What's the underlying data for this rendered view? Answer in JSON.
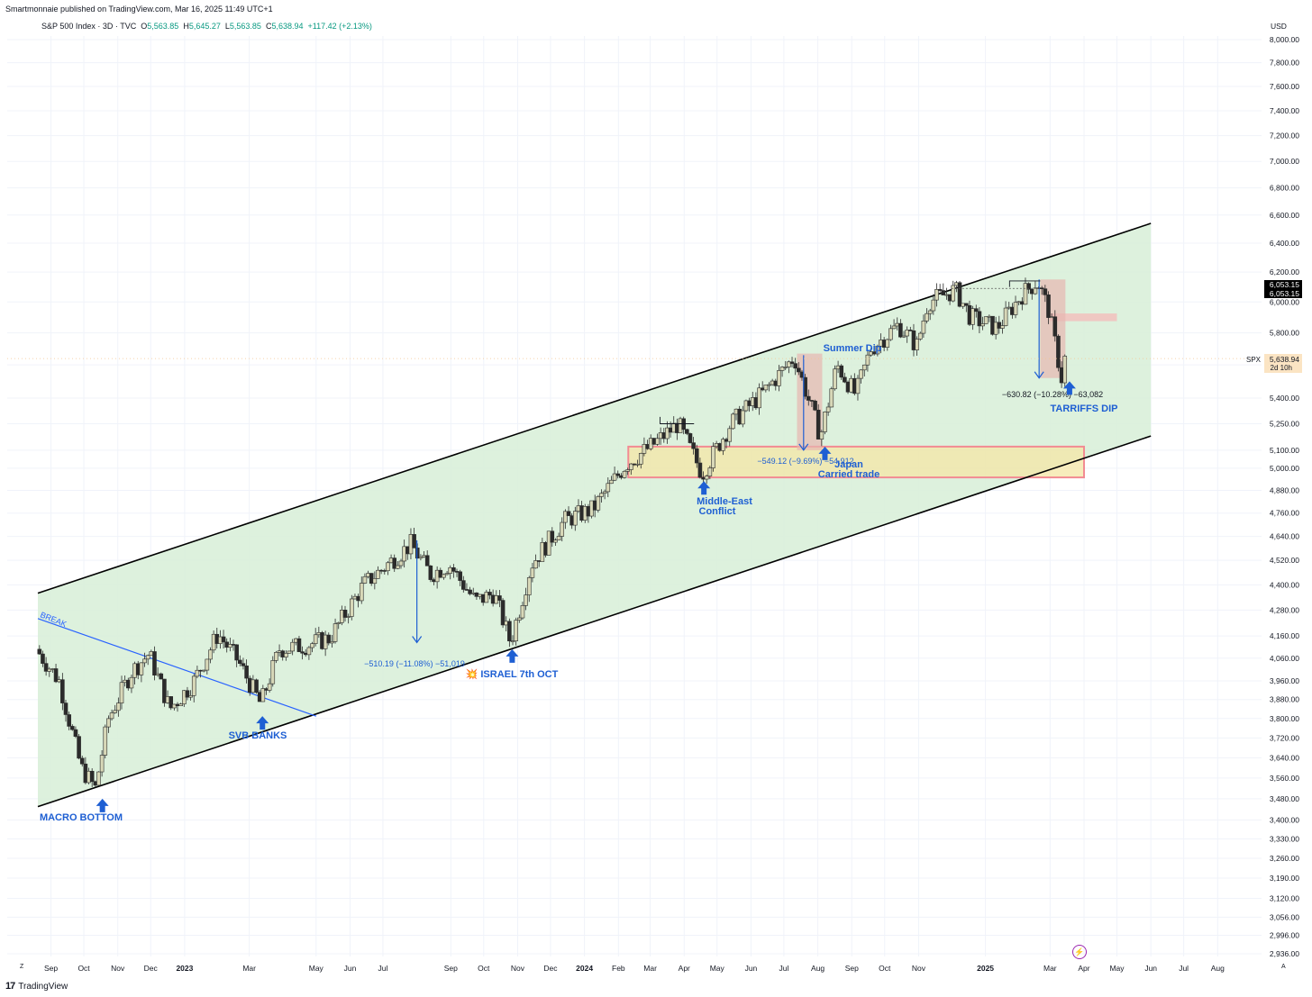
{
  "header": {
    "published": "Smartmonnaie published on TradingView.com, Mar 16, 2025 11:49 UTC+1",
    "symbol": "S&P 500 Index · 3D · TVC",
    "open_label": "O",
    "open": "5,563.85",
    "high_label": "H",
    "high": "5,645.27",
    "low_label": "L",
    "low": "5,563.85",
    "close_label": "C",
    "close": "5,638.94",
    "change": "+117.42 (+2.13%)"
  },
  "currency": "USD",
  "footer": {
    "brand": "TradingView",
    "logo": "17"
  },
  "edge_labels": {
    "left": "Z",
    "right": "A"
  },
  "colors": {
    "channel_fill": "#d9efd9",
    "channel_line": "#000000",
    "up_candle": "#d8d8b8",
    "down_candle": "#2b2b2b",
    "annotation_blue": "#1e5fd3",
    "break_line": "#2962ff",
    "zone_yellow": "#f4e5a6",
    "zone_border": "#f28b93",
    "range_fill": "#e7b7b1",
    "price_tag_bg": "#000000",
    "spx_tag_bg": "#fbe4c3"
  },
  "chart_data": {
    "type": "candlestick",
    "price_axis": {
      "scale": "log",
      "ticks": [
        2936,
        2996,
        3056,
        3120,
        3190,
        3260,
        3330,
        3400,
        3480,
        3560,
        3640,
        3720,
        3800,
        3880,
        3960,
        4060,
        4160,
        4280,
        4400,
        4520,
        4640,
        4760,
        4880,
        5000,
        5100,
        5250,
        5400,
        5600,
        5800,
        6000,
        6200,
        6400,
        6600,
        6800,
        7000,
        7200,
        7400,
        7600,
        7800,
        8000
      ],
      "tick_labels": [
        "2,936.00",
        "2,996.00",
        "3,056.00",
        "3,120.00",
        "3,190.00",
        "3,260.00",
        "3,330.00",
        "3,400.00",
        "3,480.00",
        "3,560.00",
        "3,640.00",
        "3,720.00",
        "3,800.00",
        "3,880.00",
        "3,960.00",
        "4,060.00",
        "4,160.00",
        "4,280.00",
        "4,400.00",
        "4,520.00",
        "4,640.00",
        "4,760.00",
        "4,880.00",
        "5,000.00",
        "5,100.00",
        "5,250.00",
        "5,400.00",
        "5,600.00",
        "5,800.00",
        "6,000.00",
        "6,200.00",
        "6,400.00",
        "6,600.00",
        "6,800.00",
        "7,000.00",
        "7,200.00",
        "7,400.00",
        "7,600.00",
        "7,800.00",
        "8,000.00"
      ]
    },
    "time_axis": {
      "labels": [
        "Sep",
        "Oct",
        "Nov",
        "Dec",
        "2023",
        "Mar",
        "May",
        "Jun",
        "Jul",
        "Sep",
        "Oct",
        "Nov",
        "Dec",
        "2024",
        "Feb",
        "Mar",
        "Apr",
        "May",
        "Jun",
        "Jul",
        "Aug",
        "Sep",
        "Oct",
        "Nov",
        "2025",
        "Mar",
        "Apr",
        "May",
        "Jun",
        "Jul",
        "Aug"
      ],
      "bold": [
        "2023",
        "2024",
        "2025"
      ]
    },
    "price_tags": [
      {
        "label": "6,053.15",
        "value": 6053.15,
        "style": "dark"
      },
      {
        "label": "6,053.15",
        "value": 6020,
        "style": "dark"
      }
    ],
    "last_price_tag": {
      "symbol": "SPX",
      "price": "5,638.94",
      "countdown": "2d 10h",
      "value": 5638.94
    },
    "path": [
      [
        "2022-08-20",
        4100
      ],
      [
        "2022-09-10",
        3960
      ],
      [
        "2022-09-30",
        3600
      ],
      [
        "2022-10-13",
        3520
      ],
      [
        "2022-10-25",
        3800
      ],
      [
        "2022-11-15",
        4000
      ],
      [
        "2022-12-01",
        4080
      ],
      [
        "2022-12-20",
        3840
      ],
      [
        "2023-01-10",
        3950
      ],
      [
        "2023-02-02",
        4170
      ],
      [
        "2023-02-20",
        4050
      ],
      [
        "2023-03-13",
        3860
      ],
      [
        "2023-03-30",
        4100
      ],
      [
        "2023-04-25",
        4120
      ],
      [
        "2023-05-15",
        4150
      ],
      [
        "2023-06-15",
        4400
      ],
      [
        "2023-07-28",
        4600
      ],
      [
        "2023-08-15",
        4450
      ],
      [
        "2023-09-01",
        4500
      ],
      [
        "2023-09-25",
        4320
      ],
      [
        "2023-10-12",
        4360
      ],
      [
        "2023-10-27",
        4130
      ],
      [
        "2023-11-15",
        4500
      ],
      [
        "2023-12-15",
        4720
      ],
      [
        "2024-01-10",
        4780
      ],
      [
        "2024-02-09",
        5020
      ],
      [
        "2024-03-05",
        5130
      ],
      [
        "2024-03-28",
        5250
      ],
      [
        "2024-04-19",
        4970
      ],
      [
        "2024-05-15",
        5250
      ],
      [
        "2024-06-15",
        5440
      ],
      [
        "2024-07-12",
        5650
      ],
      [
        "2024-08-05",
        5180
      ],
      [
        "2024-08-20",
        5600
      ],
      [
        "2024-09-06",
        5420
      ],
      [
        "2024-09-20",
        5700
      ],
      [
        "2024-10-15",
        5850
      ],
      [
        "2024-11-01",
        5720
      ],
      [
        "2024-11-11",
        6000
      ],
      [
        "2024-12-06",
        6080
      ],
      [
        "2024-12-20",
        5900
      ],
      [
        "2025-01-13",
        5830
      ],
      [
        "2025-02-05",
        6050
      ],
      [
        "2025-02-19",
        6140
      ],
      [
        "2025-03-01",
        5950
      ],
      [
        "2025-03-08",
        5700
      ],
      [
        "2025-03-13",
        5520
      ],
      [
        "2025-03-15",
        5638
      ]
    ],
    "channel": {
      "upper": [
        [
          "2022-08-20",
          4360
        ],
        [
          "2025-06-01",
          6540
        ]
      ],
      "lower": [
        [
          "2022-08-20",
          3450
        ],
        [
          "2025-06-01",
          5180
        ]
      ]
    },
    "break_line": {
      "label": "BREAK",
      "from": [
        "2022-08-20",
        4240
      ],
      "to": [
        "2023-05-01",
        3810
      ]
    },
    "support_zone": {
      "from": "2024-02-10",
      "to": "2025-04-01",
      "low": 4950,
      "high": 5120
    },
    "resistance_box": {
      "from": "2025-03-01",
      "to": "2025-05-01",
      "low": 5875,
      "high": 5925
    },
    "measures": [
      {
        "label": "−510.19 (−11.08%) −51,019",
        "date": "2023-08-01",
        "top": 4620,
        "bottom": 4130
      },
      {
        "label": "−549.12 (−9.69%) −54,912",
        "date": "2024-07-19",
        "top": 5660,
        "bottom": 5100
      },
      {
        "label": "−630.82 (−10.28%) −63,082",
        "date": "2025-02-19",
        "top": 6150,
        "bottom": 5520
      }
    ],
    "annotations": [
      {
        "text": "MACRO BOTTOM",
        "date": "2022-10-13",
        "value": 3480
      },
      {
        "text": "SVB BANKS",
        "date": "2023-03-13",
        "value": 3810
      },
      {
        "text": "💥 ISRAEL 7th OCT",
        "date": "2023-10-27",
        "value": 4100
      },
      {
        "text": "Middle-East",
        "text2": "Conflict",
        "date": "2024-04-19",
        "value": 4930
      },
      {
        "text": "Summer Dip",
        "date": "2024-07-19",
        "value": 5700
      },
      {
        "text": "Japan",
        "text2": "Carried trade",
        "date": "2024-08-05",
        "value": 5120
      },
      {
        "text": "TARRIFFS DIP",
        "date": "2025-03-13",
        "value": 5500
      }
    ]
  }
}
